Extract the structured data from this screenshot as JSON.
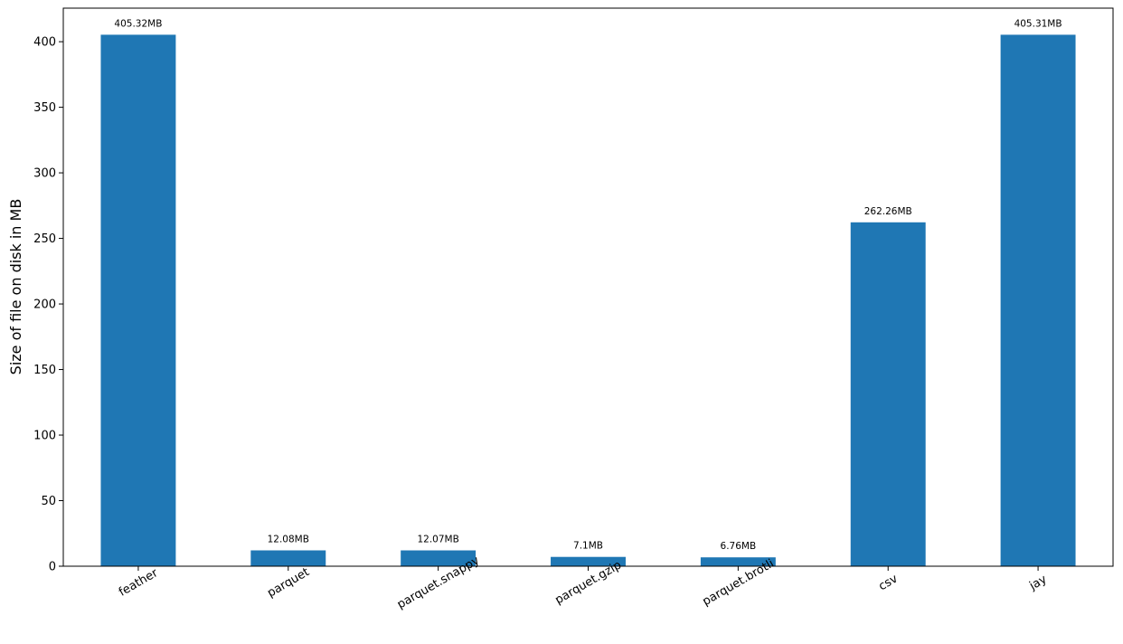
{
  "chart_data": {
    "type": "bar",
    "title": "",
    "xlabel": "",
    "ylabel": "Size of file on disk in MB",
    "categories": [
      "feather",
      "parquet",
      "parquet.snappy",
      "parquet.gzip",
      "parquet.brotli",
      "csv",
      "jay"
    ],
    "values": [
      405.32,
      12.08,
      12.07,
      7.1,
      6.76,
      262.26,
      405.31
    ],
    "data_labels": [
      "405.32MB",
      "12.08MB",
      "12.07MB",
      "7.1MB",
      "6.76MB",
      "262.26MB",
      "405.31MB"
    ],
    "ylim": [
      0,
      425.6
    ],
    "yticks": [
      0,
      50,
      100,
      150,
      200,
      250,
      300,
      350,
      400
    ],
    "grid": false,
    "legend": "none",
    "bar_color": "#1f77b4"
  }
}
